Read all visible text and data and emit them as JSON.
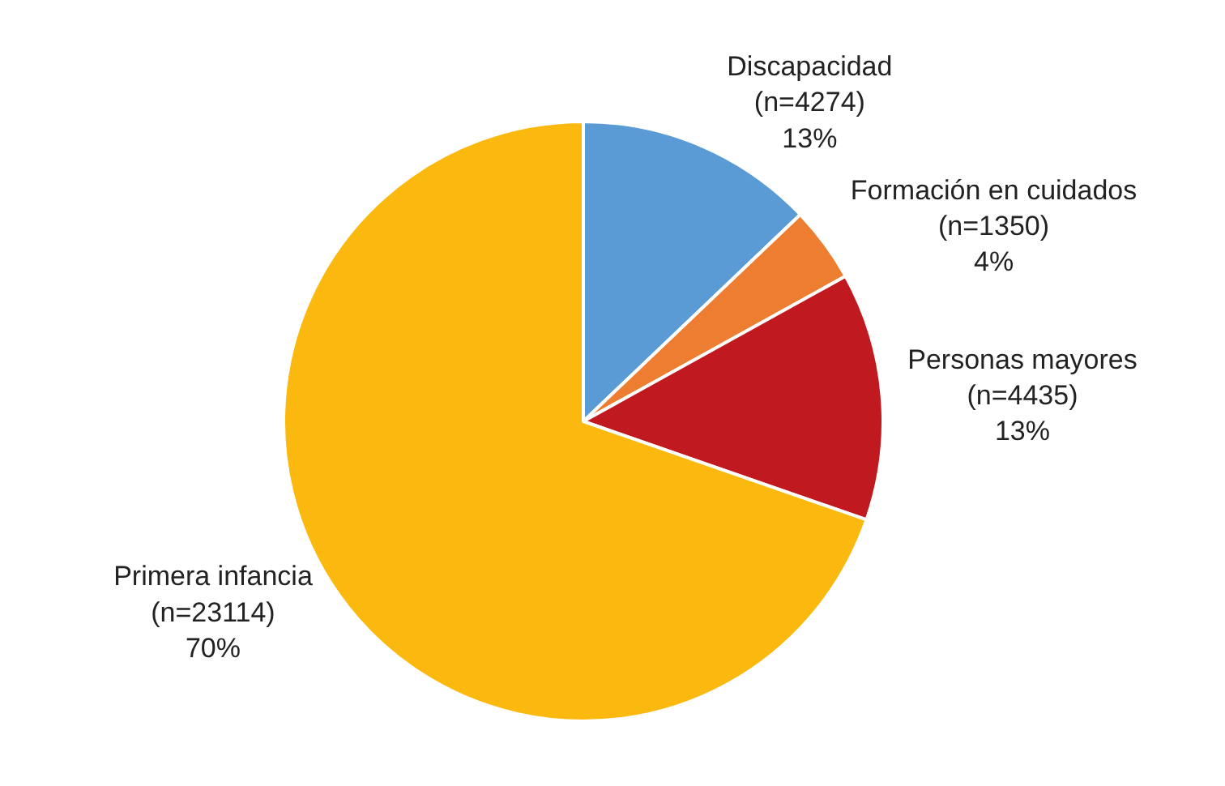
{
  "chart_data": {
    "type": "pie",
    "categories": [
      "Discapacidad",
      "Formación en cuidados",
      "Personas mayores",
      "Primera infancia"
    ],
    "values": [
      4274,
      1350,
      4435,
      23114
    ],
    "value_labels": [
      "(n=4274)\n13%",
      "(n=1350)\n4%",
      "(n=4435)\n13%",
      "(n=23114)\n70%"
    ],
    "colors": [
      "#5b9bd5",
      "#ed7d31",
      "#c0191f",
      "#fbb90f"
    ],
    "legend": false
  }
}
